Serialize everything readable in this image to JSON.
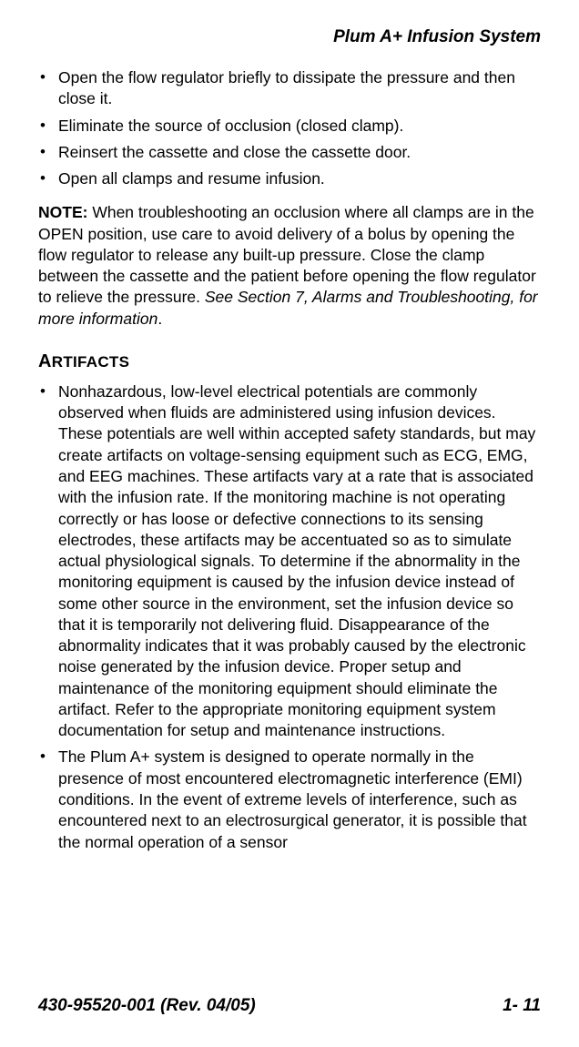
{
  "header": {
    "title": "Plum A+ Infusion System"
  },
  "bullets_top": [
    "Open the flow regulator briefly to dissipate the pressure and then close it.",
    "Eliminate the source of occlusion (closed clamp).",
    "Reinsert the cassette and close the cassette door.",
    "Open all clamps and resume infusion."
  ],
  "note": {
    "label": "NOTE:",
    "body": " When troubleshooting an occlusion where all clamps are in the OPEN position, use care to avoid delivery of a bolus by opening the flow regulator to release any built-up pressure. Close the clamp between the cassette and the patient before opening the flow regulator to relieve the pressure. ",
    "ref": "See Section 7, Alarms and Troubleshooting, for more information",
    "period": "."
  },
  "section": {
    "heading_first": "A",
    "heading_rest": "RTIFACTS"
  },
  "bullets_artifacts": [
    "Nonhazardous, low-level electrical potentials are commonly observed when fluids are administered using infusion devices. These potentials are well within accepted safety standards, but may create artifacts on voltage-sensing equipment such as ECG, EMG, and EEG machines. These artifacts vary at a rate that is associated with the infusion rate. If the monitoring machine is not operating correctly or has loose or defective connections to its sensing electrodes, these artifacts may be accentuated so as to simulate actual physiological signals. To determine if the abnormality in the monitoring equipment is caused by the infusion device instead of some other source in the environment, set the infusion device so that it is temporarily not delivering fluid. Disappearance of the abnormality indicates that it was probably caused by the electronic noise generated by the infusion device. Proper setup and maintenance of the monitoring equipment should eliminate the artifact. Refer to the appropriate monitoring equipment system documentation for setup and maintenance instructions.",
    "The Plum A+ system is designed to operate normally in the presence of most encountered electromagnetic interference (EMI) conditions. In the event of extreme levels of interference, such as encountered next to an electrosurgical generator, it is possible that the normal operation of a sensor"
  ],
  "footer": {
    "doc_id": "430-95520-001 (Rev. 04/05)",
    "page_no": "1- 11"
  }
}
